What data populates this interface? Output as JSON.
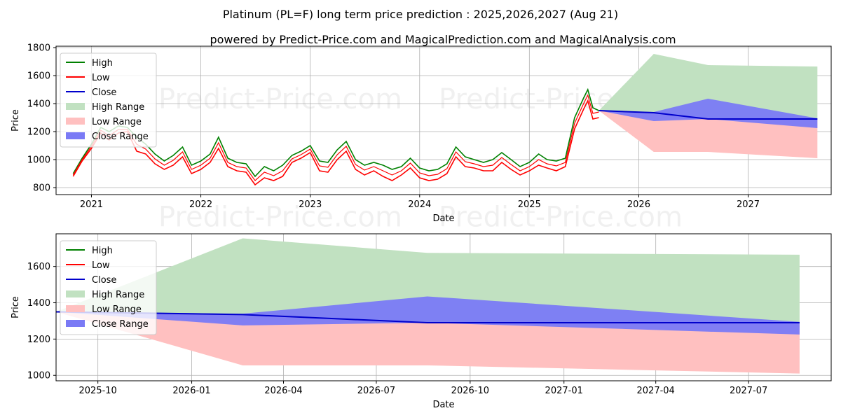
{
  "title": "Platinum (PL=F) long term price prediction : 2025,2026,2027 (Aug 21)",
  "subtitle": "powered by Predict-Price.com and MagicalPrediction.com and MagicalAnalysis.com",
  "watermark": "Predict-Price.com",
  "colors": {
    "high": "#008000",
    "low": "#ff0000",
    "close": "#0000cc",
    "high_range": "#c1e1c1",
    "low_range": "#ffc0c0",
    "close_range": "#7a7af5",
    "grid": "#b0b0b0"
  },
  "legend": {
    "placement": "top-left",
    "items": [
      "High",
      "Low",
      "Close",
      "High Range",
      "Low Range",
      "Close Range"
    ]
  },
  "chart_data": [
    {
      "type": "line",
      "xlabel": "Date",
      "ylabel": "Price",
      "xlim": [
        "2020-09-05",
        "2027-10-05"
      ],
      "ylim": [
        750,
        1810
      ],
      "grid": true,
      "yticks": [
        800,
        1000,
        1200,
        1400,
        1600,
        1800
      ],
      "xticks": [
        {
          "date": "2021-01-01",
          "label": "2021"
        },
        {
          "date": "2022-01-01",
          "label": "2022"
        },
        {
          "date": "2023-01-01",
          "label": "2023"
        },
        {
          "date": "2024-01-01",
          "label": "2024"
        },
        {
          "date": "2025-01-01",
          "label": "2025"
        },
        {
          "date": "2026-01-01",
          "label": "2026"
        },
        {
          "date": "2027-01-01",
          "label": "2027"
        }
      ],
      "history": {
        "x": [
          "2020-11-01",
          "2020-12-01",
          "2021-01-01",
          "2021-02-01",
          "2021-03-01",
          "2021-04-01",
          "2021-05-01",
          "2021-06-01",
          "2021-07-01",
          "2021-08-01",
          "2021-09-01",
          "2021-10-01",
          "2021-11-01",
          "2021-12-01",
          "2022-01-01",
          "2022-02-01",
          "2022-03-01",
          "2022-04-01",
          "2022-05-01",
          "2022-06-01",
          "2022-07-01",
          "2022-08-01",
          "2022-09-01",
          "2022-10-01",
          "2022-11-01",
          "2022-12-01",
          "2023-01-01",
          "2023-02-01",
          "2023-03-01",
          "2023-04-01",
          "2023-05-01",
          "2023-06-01",
          "2023-07-01",
          "2023-08-01",
          "2023-09-01",
          "2023-10-01",
          "2023-11-01",
          "2023-12-01",
          "2024-01-01",
          "2024-02-01",
          "2024-03-01",
          "2024-04-01",
          "2024-05-01",
          "2024-06-01",
          "2024-07-01",
          "2024-08-01",
          "2024-09-01",
          "2024-10-01",
          "2024-11-01",
          "2024-12-01",
          "2025-01-01",
          "2025-02-01",
          "2025-03-01",
          "2025-04-01",
          "2025-05-01",
          "2025-06-01",
          "2025-07-01",
          "2025-07-15",
          "2025-08-01",
          "2025-08-21"
        ],
        "high": [
          900,
          1010,
          1110,
          1230,
          1200,
          1240,
          1230,
          1160,
          1110,
          1040,
          990,
          1030,
          1090,
          960,
          990,
          1040,
          1160,
          1010,
          980,
          970,
          880,
          950,
          920,
          960,
          1030,
          1060,
          1100,
          990,
          980,
          1070,
          1130,
          1000,
          960,
          980,
          960,
          930,
          950,
          1010,
          940,
          920,
          930,
          970,
          1090,
          1020,
          1000,
          980,
          1000,
          1050,
          1000,
          950,
          980,
          1040,
          1000,
          990,
          1010,
          1300,
          1440,
          1500,
          1370,
          1350
        ],
        "low": [
          880,
          990,
          1080,
          1190,
          1140,
          1190,
          1200,
          1060,
          1040,
          970,
          930,
          960,
          1020,
          900,
          930,
          980,
          1080,
          950,
          920,
          910,
          820,
          870,
          850,
          880,
          980,
          1010,
          1050,
          920,
          910,
          1000,
          1060,
          930,
          890,
          920,
          880,
          850,
          890,
          940,
          870,
          850,
          860,
          900,
          1020,
          950,
          940,
          920,
          920,
          980,
          930,
          890,
          920,
          960,
          940,
          920,
          950,
          1220,
          1360,
          1420,
          1290,
          1300
        ],
        "close": [
          890,
          1000,
          1095,
          1210,
          1170,
          1215,
          1215,
          1110,
          1075,
          1005,
          960,
          995,
          1055,
          930,
          960,
          1010,
          1120,
          980,
          950,
          940,
          850,
          910,
          885,
          920,
          1005,
          1035,
          1075,
          955,
          945,
          1035,
          1095,
          965,
          925,
          950,
          920,
          890,
          920,
          975,
          905,
          885,
          895,
          935,
          1055,
          985,
          970,
          950,
          960,
          1015,
          965,
          920,
          950,
          1000,
          970,
          955,
          980,
          1260,
          1400,
          1460,
          1330,
          1340
        ]
      },
      "forecast": {
        "x": [
          "2025-08-21",
          "2026-02-20",
          "2026-08-20",
          "2027-08-20"
        ],
        "close": [
          1350,
          1335,
          1290,
          1290
        ],
        "high_range_upper": [
          1350,
          1755,
          1675,
          1665
        ],
        "close_range_upper": [
          1350,
          1340,
          1435,
          1295
        ],
        "close_range_lower": [
          1350,
          1275,
          1290,
          1225
        ],
        "low_range_lower": [
          1350,
          1055,
          1055,
          1010
        ]
      }
    },
    {
      "type": "line",
      "xlabel": "Date",
      "ylabel": "Price",
      "xlim": [
        "2025-08-21",
        "2027-09-20"
      ],
      "ylim": [
        970,
        1780
      ],
      "grid": true,
      "yticks": [
        1000,
        1200,
        1400,
        1600
      ],
      "xticks": [
        {
          "date": "2025-10-01",
          "label": "2025-10"
        },
        {
          "date": "2026-01-01",
          "label": "2026-01"
        },
        {
          "date": "2026-04-01",
          "label": "2026-04"
        },
        {
          "date": "2026-07-01",
          "label": "2026-07"
        },
        {
          "date": "2026-10-01",
          "label": "2026-10"
        },
        {
          "date": "2027-01-01",
          "label": "2027-01"
        },
        {
          "date": "2027-04-01",
          "label": "2027-04"
        },
        {
          "date": "2027-07-01",
          "label": "2027-07"
        }
      ],
      "forecast": {
        "x": [
          "2025-08-21",
          "2026-02-20",
          "2026-08-20",
          "2027-08-20"
        ],
        "close": [
          1350,
          1335,
          1290,
          1290
        ],
        "high_range_upper": [
          1350,
          1755,
          1675,
          1665
        ],
        "close_range_upper": [
          1350,
          1340,
          1435,
          1295
        ],
        "close_range_lower": [
          1350,
          1275,
          1290,
          1225
        ],
        "low_range_lower": [
          1350,
          1055,
          1055,
          1010
        ]
      }
    }
  ]
}
